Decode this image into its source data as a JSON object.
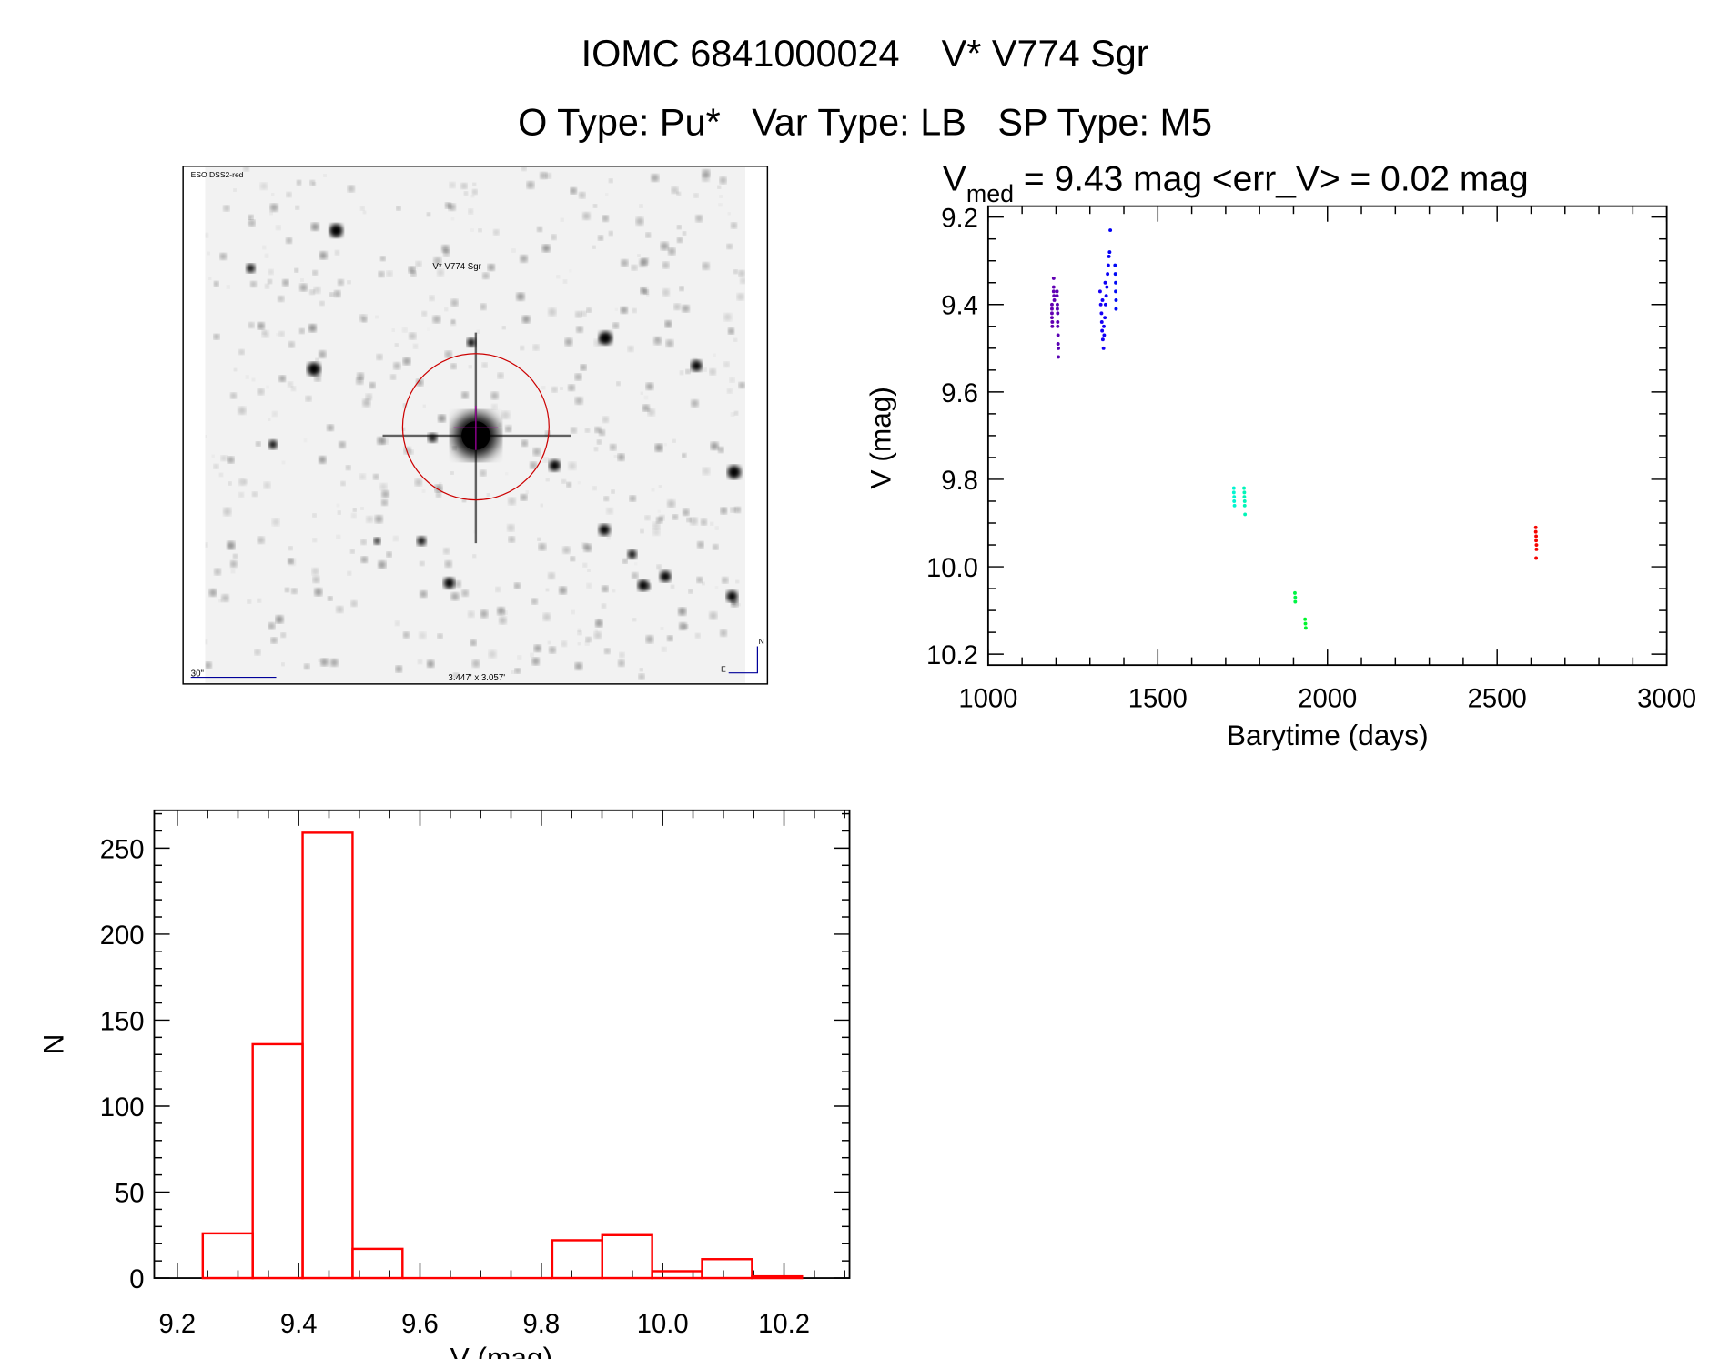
{
  "header": {
    "title": "IOMC 6841000024    V* V774 Sgr",
    "subtitle": "O Type: Pu*   Var Type: LB   SP Type: M5"
  },
  "finder_image": {
    "survey_label": "ESO DSS2-red",
    "target_label": "V* V774 Sgr",
    "scale_label": "30\"",
    "fov_label": "3.447' x 3.057'",
    "north_label": "N",
    "east_label": "E",
    "circle_color": "#cc0000",
    "label_color": "#000099"
  },
  "chart_data": [
    {
      "type": "scatter",
      "title_main": "V",
      "title_sub": "med",
      "title_rest": " = 9.43 mag <err_V> = 0.02 mag",
      "xlabel": "Barytime (days)",
      "ylabel": "V (mag)",
      "xlim": [
        1000,
        3000
      ],
      "ylim": [
        10.225,
        9.175
      ],
      "y_inverted": true,
      "xticks": [
        "1000",
        "1500",
        "2000",
        "2500",
        "3000"
      ],
      "yticks": [
        "9.2",
        "9.4",
        "9.6",
        "9.8",
        "10.0",
        "10.2"
      ],
      "color_scale": "rainbow by time",
      "points": [
        [
          1188,
          9.4
        ],
        [
          1188,
          9.41
        ],
        [
          1188,
          9.42
        ],
        [
          1188,
          9.43
        ],
        [
          1189,
          9.44
        ],
        [
          1189,
          9.45
        ],
        [
          1193,
          9.34
        ],
        [
          1193,
          9.36
        ],
        [
          1193,
          9.37
        ],
        [
          1194,
          9.38
        ],
        [
          1195,
          9.39
        ],
        [
          1203,
          9.38
        ],
        [
          1204,
          9.4
        ],
        [
          1204,
          9.41
        ],
        [
          1205,
          9.42
        ],
        [
          1205,
          9.44
        ],
        [
          1205,
          9.45
        ],
        [
          1206,
          9.47
        ],
        [
          1206,
          9.49
        ],
        [
          1207,
          9.5
        ],
        [
          1207,
          9.52
        ],
        [
          1203,
          9.37
        ],
        [
          1330,
          9.37
        ],
        [
          1332,
          9.4
        ],
        [
          1334,
          9.42
        ],
        [
          1335,
          9.44
        ],
        [
          1336,
          9.46
        ],
        [
          1338,
          9.48
        ],
        [
          1340,
          9.5
        ],
        [
          1342,
          9.47
        ],
        [
          1344,
          9.43
        ],
        [
          1346,
          9.4
        ],
        [
          1348,
          9.38
        ],
        [
          1350,
          9.36
        ],
        [
          1352,
          9.33
        ],
        [
          1354,
          9.31
        ],
        [
          1356,
          9.29
        ],
        [
          1358,
          9.28
        ],
        [
          1360,
          9.23
        ],
        [
          1345,
          9.35
        ],
        [
          1337,
          9.39
        ],
        [
          1341,
          9.45
        ],
        [
          1374,
          9.31
        ],
        [
          1375,
          9.33
        ],
        [
          1376,
          9.35
        ],
        [
          1376,
          9.37
        ],
        [
          1377,
          9.39
        ],
        [
          1377,
          9.41
        ],
        [
          1724,
          9.82
        ],
        [
          1724,
          9.83
        ],
        [
          1725,
          9.84
        ],
        [
          1725,
          9.85
        ],
        [
          1726,
          9.86
        ],
        [
          1754,
          9.82
        ],
        [
          1755,
          9.83
        ],
        [
          1755,
          9.84
        ],
        [
          1756,
          9.85
        ],
        [
          1756,
          9.86
        ],
        [
          1757,
          9.88
        ],
        [
          1904,
          10.06
        ],
        [
          1905,
          10.07
        ],
        [
          1905,
          10.08
        ],
        [
          1934,
          10.12
        ],
        [
          1935,
          10.13
        ],
        [
          1936,
          10.14
        ],
        [
          2614,
          9.91
        ],
        [
          2614,
          9.92
        ],
        [
          2615,
          9.93
        ],
        [
          2615,
          9.94
        ],
        [
          2616,
          9.95
        ],
        [
          2616,
          9.96
        ],
        [
          2615,
          9.98
        ]
      ]
    },
    {
      "type": "bar",
      "subtype": "histogram",
      "xlabel": "V (mag)",
      "ylabel": "N",
      "xlim": [
        9.162,
        10.308
      ],
      "ylim": [
        0,
        272
      ],
      "xticks": [
        "9.2",
        "9.4",
        "9.6",
        "9.8",
        "10.0",
        "10.2"
      ],
      "yticks": [
        "0",
        "50",
        "100",
        "150",
        "200",
        "250"
      ],
      "bin_start": 9.242,
      "bin_width": 0.0823,
      "values": [
        26,
        136,
        259,
        17,
        0,
        0,
        0,
        22,
        25,
        4,
        11,
        1
      ],
      "bar_color": "#ff0000"
    }
  ]
}
